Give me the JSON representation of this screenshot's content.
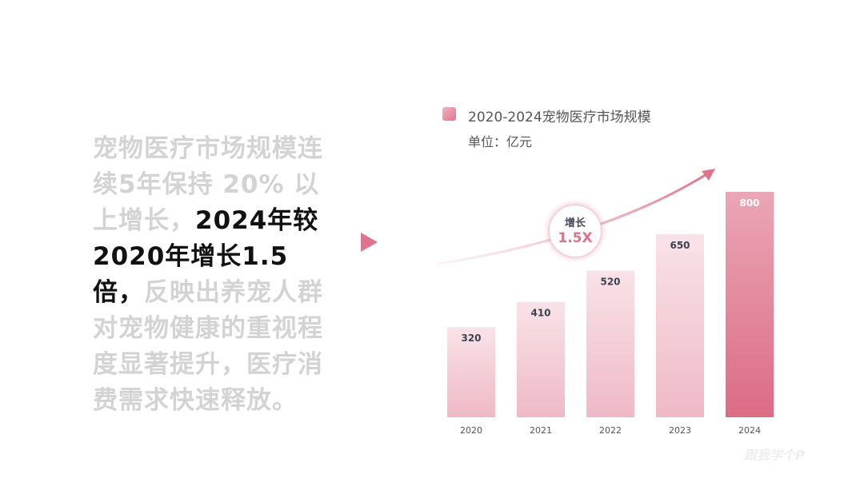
{
  "text": {
    "part1": "宠物医疗市场规模连续5年保持 20% 以上增长，",
    "highlight": "2024年较2020年增长1.5 倍，",
    "part2": "反映出养宠人群对宠物健康的重视程度显著提升，医疗消费需求快速释放。"
  },
  "growth_badge": {
    "label": "增长",
    "value": "1.5X"
  },
  "watermark": "跟我学个P",
  "colors": {
    "accent": "#e0728c",
    "bar_light": "#f6dde3",
    "bar_mid": "#eeb4c2",
    "bar_strong": "#de6f87",
    "value_text": "#3c4250",
    "axis_text": "#555555"
  },
  "chart_data": {
    "type": "bar",
    "title": "2020-2024宠物医疗市场规模",
    "subtitle": "单位：亿元",
    "categories": [
      "2020",
      "2021",
      "2022",
      "2023",
      "2024"
    ],
    "values": [
      320,
      410,
      520,
      650,
      800
    ],
    "highlight_index": 4,
    "grid": false,
    "legend": "top-left",
    "trend_arrow": true
  }
}
